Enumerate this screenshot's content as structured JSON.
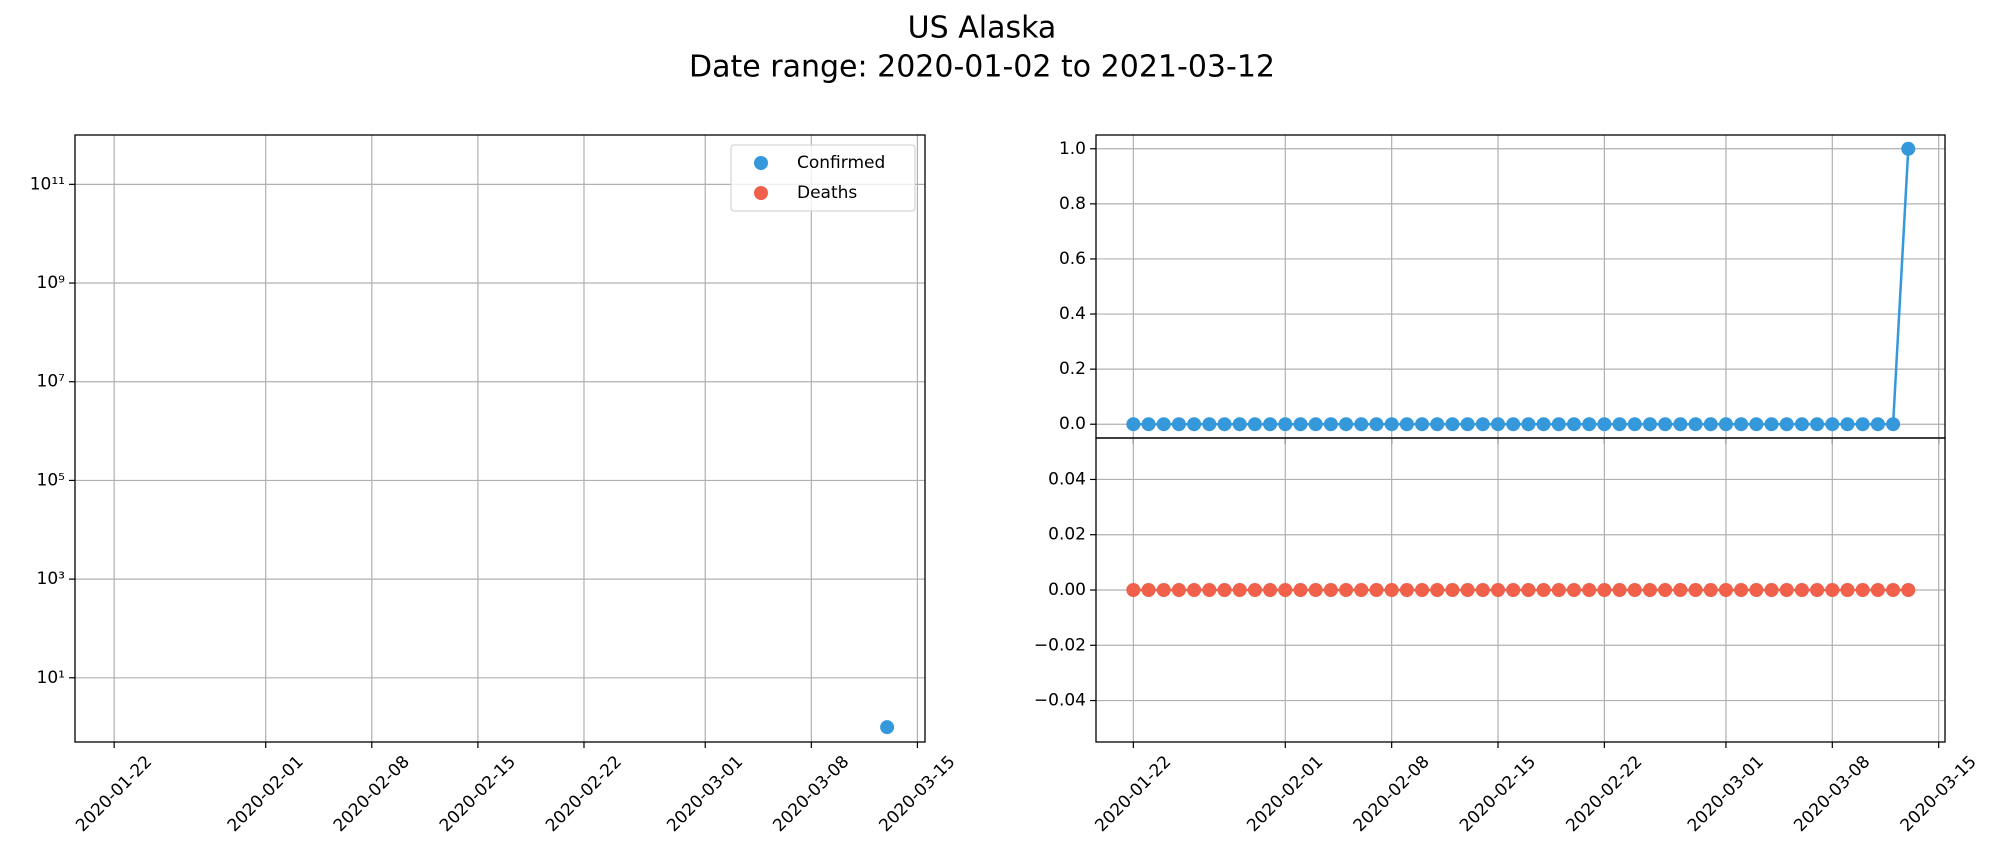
{
  "title": "US Alaska",
  "subtitle": "Date range: 2020-01-02 to 2021-03-12",
  "chart_data": [
    {
      "type": "line",
      "log": true,
      "grid": true,
      "legend": "upper right",
      "show_xticklabels": true,
      "xlim": [
        "2020-01-19T10:00",
        "2020-03-15T12:00"
      ],
      "xticks": [
        "2020-01-22",
        "2020-02-01",
        "2020-02-08",
        "2020-02-15",
        "2020-02-22",
        "2020-03-01",
        "2020-03-08",
        "2020-03-15"
      ],
      "ylim": [
        0.5,
        1000000000000
      ],
      "yticks": [
        {
          "value": 10,
          "label": "10¹"
        },
        {
          "value": 1000,
          "label": "10³"
        },
        {
          "value": 100000,
          "label": "10⁵"
        },
        {
          "value": 10000000,
          "label": "10⁷"
        },
        {
          "value": 1000000000,
          "label": "10⁹"
        },
        {
          "value": 100000000000,
          "label": "10¹¹"
        }
      ],
      "x": [
        "2020-01-22",
        "2020-01-23",
        "2020-01-24",
        "2020-01-25",
        "2020-01-26",
        "2020-01-27",
        "2020-01-28",
        "2020-01-29",
        "2020-01-30",
        "2020-01-31",
        "2020-02-01",
        "2020-02-02",
        "2020-02-03",
        "2020-02-04",
        "2020-02-05",
        "2020-02-06",
        "2020-02-07",
        "2020-02-08",
        "2020-02-09",
        "2020-02-10",
        "2020-02-11",
        "2020-02-12",
        "2020-02-13",
        "2020-02-14",
        "2020-02-15",
        "2020-02-16",
        "2020-02-17",
        "2020-02-18",
        "2020-02-19",
        "2020-02-20",
        "2020-02-21",
        "2020-02-22",
        "2020-02-23",
        "2020-02-24",
        "2020-02-25",
        "2020-02-26",
        "2020-02-27",
        "2020-02-28",
        "2020-02-29",
        "2020-03-01",
        "2020-03-02",
        "2020-03-03",
        "2020-03-04",
        "2020-03-05",
        "2020-03-06",
        "2020-03-07",
        "2020-03-08",
        "2020-03-09",
        "2020-03-10",
        "2020-03-11",
        "2020-03-12",
        "2020-03-13"
      ],
      "series": [
        {
          "name": "Confirmed",
          "color": "#3498db",
          "values": [
            0,
            0,
            0,
            0,
            0,
            0,
            0,
            0,
            0,
            0,
            0,
            0,
            0,
            0,
            0,
            0,
            0,
            0,
            0,
            0,
            0,
            0,
            0,
            0,
            0,
            0,
            0,
            0,
            0,
            0,
            0,
            0,
            0,
            0,
            0,
            0,
            0,
            0,
            0,
            0,
            0,
            0,
            0,
            0,
            0,
            0,
            0,
            0,
            0,
            0,
            0,
            1
          ]
        },
        {
          "name": "Deaths",
          "color": "#f0604a",
          "values": [
            0,
            0,
            0,
            0,
            0,
            0,
            0,
            0,
            0,
            0,
            0,
            0,
            0,
            0,
            0,
            0,
            0,
            0,
            0,
            0,
            0,
            0,
            0,
            0,
            0,
            0,
            0,
            0,
            0,
            0,
            0,
            0,
            0,
            0,
            0,
            0,
            0,
            0,
            0,
            0,
            0,
            0,
            0,
            0,
            0,
            0,
            0,
            0,
            0,
            0,
            0,
            0
          ]
        }
      ]
    },
    {
      "type": "line",
      "log": false,
      "grid": true,
      "show_xticklabels": false,
      "xlim": [
        "2020-01-19T13:00",
        "2020-03-15T10:00"
      ],
      "xticks": [
        "2020-01-22",
        "2020-02-01",
        "2020-02-08",
        "2020-02-15",
        "2020-02-22",
        "2020-03-01",
        "2020-03-08",
        "2020-03-15"
      ],
      "ylim": [
        -0.05,
        1.05
      ],
      "yticks": [
        {
          "value": 0,
          "label": "0.0"
        },
        {
          "value": 0.2,
          "label": "0.2"
        },
        {
          "value": 0.4,
          "label": "0.4"
        },
        {
          "value": 0.6,
          "label": "0.6"
        },
        {
          "value": 0.8,
          "label": "0.8"
        },
        {
          "value": 1,
          "label": "1.0"
        }
      ],
      "x": [
        "2020-01-22",
        "2020-01-23",
        "2020-01-24",
        "2020-01-25",
        "2020-01-26",
        "2020-01-27",
        "2020-01-28",
        "2020-01-29",
        "2020-01-30",
        "2020-01-31",
        "2020-02-01",
        "2020-02-02",
        "2020-02-03",
        "2020-02-04",
        "2020-02-05",
        "2020-02-06",
        "2020-02-07",
        "2020-02-08",
        "2020-02-09",
        "2020-02-10",
        "2020-02-11",
        "2020-02-12",
        "2020-02-13",
        "2020-02-14",
        "2020-02-15",
        "2020-02-16",
        "2020-02-17",
        "2020-02-18",
        "2020-02-19",
        "2020-02-20",
        "2020-02-21",
        "2020-02-22",
        "2020-02-23",
        "2020-02-24",
        "2020-02-25",
        "2020-02-26",
        "2020-02-27",
        "2020-02-28",
        "2020-02-29",
        "2020-03-01",
        "2020-03-02",
        "2020-03-03",
        "2020-03-04",
        "2020-03-05",
        "2020-03-06",
        "2020-03-07",
        "2020-03-08",
        "2020-03-09",
        "2020-03-10",
        "2020-03-11",
        "2020-03-12",
        "2020-03-13"
      ],
      "series": [
        {
          "name": "Confirmed",
          "color": "#3498db",
          "values": [
            0,
            0,
            0,
            0,
            0,
            0,
            0,
            0,
            0,
            0,
            0,
            0,
            0,
            0,
            0,
            0,
            0,
            0,
            0,
            0,
            0,
            0,
            0,
            0,
            0,
            0,
            0,
            0,
            0,
            0,
            0,
            0,
            0,
            0,
            0,
            0,
            0,
            0,
            0,
            0,
            0,
            0,
            0,
            0,
            0,
            0,
            0,
            0,
            0,
            0,
            0,
            1
          ]
        }
      ]
    },
    {
      "type": "line",
      "log": false,
      "grid": true,
      "show_xticklabels": true,
      "xlim": [
        "2020-01-19T13:00",
        "2020-03-15T10:00"
      ],
      "xticks": [
        "2020-01-22",
        "2020-02-01",
        "2020-02-08",
        "2020-02-15",
        "2020-02-22",
        "2020-03-01",
        "2020-03-08",
        "2020-03-15"
      ],
      "ylim": [
        -0.055,
        0.055
      ],
      "yticks": [
        {
          "value": -0.04,
          "label": "−0.04"
        },
        {
          "value": -0.02,
          "label": "−0.02"
        },
        {
          "value": 0,
          "label": "0.00"
        },
        {
          "value": 0.02,
          "label": "0.02"
        },
        {
          "value": 0.04,
          "label": "0.04"
        }
      ],
      "x": [
        "2020-01-22",
        "2020-01-23",
        "2020-01-24",
        "2020-01-25",
        "2020-01-26",
        "2020-01-27",
        "2020-01-28",
        "2020-01-29",
        "2020-01-30",
        "2020-01-31",
        "2020-02-01",
        "2020-02-02",
        "2020-02-03",
        "2020-02-04",
        "2020-02-05",
        "2020-02-06",
        "2020-02-07",
        "2020-02-08",
        "2020-02-09",
        "2020-02-10",
        "2020-02-11",
        "2020-02-12",
        "2020-02-13",
        "2020-02-14",
        "2020-02-15",
        "2020-02-16",
        "2020-02-17",
        "2020-02-18",
        "2020-02-19",
        "2020-02-20",
        "2020-02-21",
        "2020-02-22",
        "2020-02-23",
        "2020-02-24",
        "2020-02-25",
        "2020-02-26",
        "2020-02-27",
        "2020-02-28",
        "2020-02-29",
        "2020-03-01",
        "2020-03-02",
        "2020-03-03",
        "2020-03-04",
        "2020-03-05",
        "2020-03-06",
        "2020-03-07",
        "2020-03-08",
        "2020-03-09",
        "2020-03-10",
        "2020-03-11",
        "2020-03-12",
        "2020-03-13"
      ],
      "series": [
        {
          "name": "Deaths",
          "color": "#f0604a",
          "values": [
            0,
            0,
            0,
            0,
            0,
            0,
            0,
            0,
            0,
            0,
            0,
            0,
            0,
            0,
            0,
            0,
            0,
            0,
            0,
            0,
            0,
            0,
            0,
            0,
            0,
            0,
            0,
            0,
            0,
            0,
            0,
            0,
            0,
            0,
            0,
            0,
            0,
            0,
            0,
            0,
            0,
            0,
            0,
            0,
            0,
            0,
            0,
            0,
            0,
            0,
            0,
            0
          ]
        }
      ]
    }
  ]
}
